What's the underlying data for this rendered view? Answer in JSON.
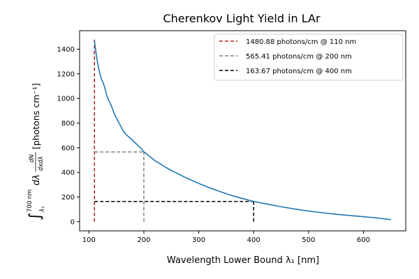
{
  "chart_data": {
    "type": "line",
    "title": "Cherenkov Light Yield in LAr",
    "xlabel": "Wavelength Lower Bound λ₁ [nm]",
    "ylabel": {
      "integral": "∫",
      "upper_limit": "700 nm",
      "lower_limit": "λ₁",
      "d_lambda": "dλ",
      "frac_num": "dN",
      "frac_den": "dxdλ",
      "units": "[photons cm⁻¹]"
    },
    "xlim": [
      83,
      677
    ],
    "ylim": [
      -75,
      1550
    ],
    "xticks": [
      100,
      200,
      300,
      400,
      500,
      600
    ],
    "yticks": [
      0,
      200,
      400,
      600,
      800,
      1000,
      1200,
      1400
    ],
    "grid": false,
    "legend_position": "top-right",
    "series": [
      {
        "name": "",
        "color": "#1f77b4",
        "style": "solid",
        "x": [
          110,
          112,
          114,
          116,
          118,
          120,
          123,
          126,
          129,
          132,
          136,
          140,
          145,
          150,
          156,
          162,
          168,
          175,
          182,
          190,
          196,
          200,
          210,
          220,
          230,
          240,
          250,
          260,
          275,
          290,
          300,
          320,
          340,
          360,
          380,
          400,
          425,
          450,
          475,
          500,
          525,
          550,
          575,
          600,
          625,
          650
        ],
        "y": [
          1470,
          1400,
          1335,
          1285,
          1240,
          1200,
          1155,
          1125,
          1085,
          1030,
          985,
          950,
          890,
          840,
          790,
          740,
          705,
          680,
          650,
          615,
          590,
          567,
          532,
          496,
          468,
          440,
          415,
          393,
          360,
          330,
          310,
          274,
          242,
          212,
          187,
          164,
          142,
          121,
          102,
          86,
          72,
          60,
          50,
          40,
          30,
          17
        ]
      }
    ],
    "references": [
      {
        "label": "1480.88 photons/cm @ 110 nm",
        "color": "#b22222",
        "x": 110,
        "y": 1480.88
      },
      {
        "label": "565.41 photons/cm @ 200 nm",
        "color": "#808080",
        "x": 200,
        "y": 565.41
      },
      {
        "label": "163.67 photons/cm @ 400 nm",
        "color": "#000000",
        "x": 400,
        "y": 163.67
      }
    ]
  }
}
